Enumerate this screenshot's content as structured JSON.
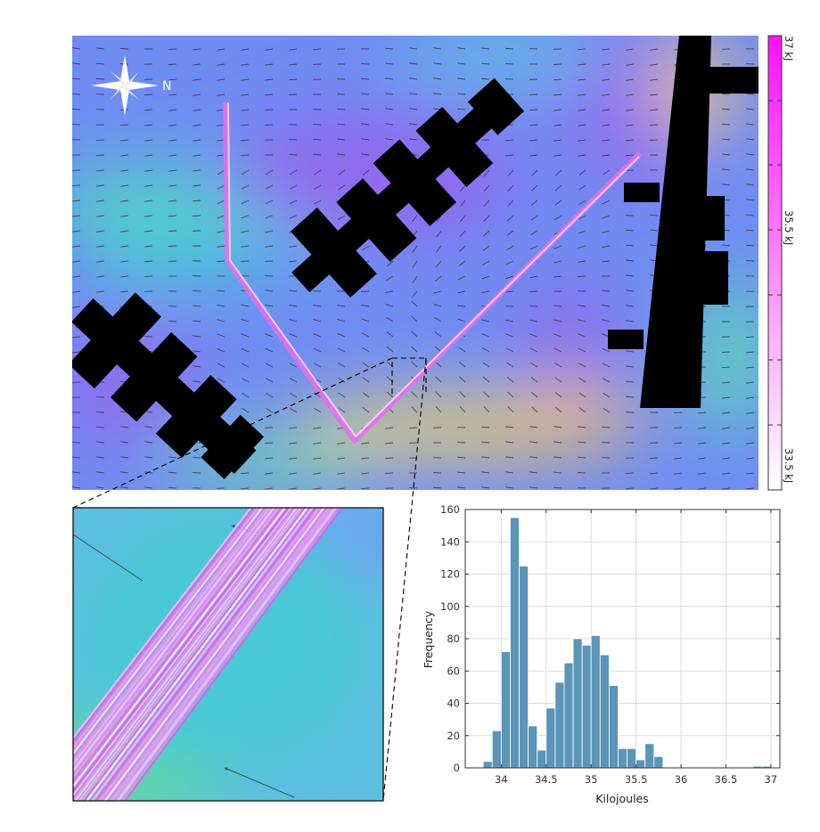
{
  "map": {
    "north_label": "N",
    "colorbar": {
      "labels": [
        "37 kJ",
        "35.5 kJ",
        "33.5 kJ"
      ],
      "colors": [
        "#ff00ff",
        "#ffffff"
      ]
    },
    "background_colors": [
      "#8a6bf0",
      "#6f8ff5",
      "#3fc8da",
      "#7fe0a8",
      "#f2c86a"
    ],
    "path_color": "#e070f0"
  },
  "chart_data": {
    "type": "bar",
    "xlabel": "Kilojoules",
    "ylabel": "Frequency",
    "xlim": [
      33.6,
      37.1
    ],
    "ylim": [
      0,
      160
    ],
    "xticks": [
      34,
      34.5,
      35,
      35.5,
      36,
      36.5,
      37
    ],
    "yticks": [
      0,
      20,
      40,
      60,
      80,
      100,
      120,
      140,
      160
    ],
    "grid": true,
    "bar_color": "#5b95b8",
    "bin_width": 0.1,
    "bins": [
      {
        "x": 33.8,
        "value": 4
      },
      {
        "x": 33.9,
        "value": 23
      },
      {
        "x": 34.0,
        "value": 72
      },
      {
        "x": 34.1,
        "value": 155
      },
      {
        "x": 34.2,
        "value": 125
      },
      {
        "x": 34.3,
        "value": 26
      },
      {
        "x": 34.4,
        "value": 11
      },
      {
        "x": 34.5,
        "value": 37
      },
      {
        "x": 34.6,
        "value": 53
      },
      {
        "x": 34.7,
        "value": 65
      },
      {
        "x": 34.8,
        "value": 80
      },
      {
        "x": 34.9,
        "value": 76
      },
      {
        "x": 35.0,
        "value": 82
      },
      {
        "x": 35.1,
        "value": 70
      },
      {
        "x": 35.2,
        "value": 51
      },
      {
        "x": 35.3,
        "value": 12
      },
      {
        "x": 35.4,
        "value": 12
      },
      {
        "x": 35.5,
        "value": 5
      },
      {
        "x": 35.6,
        "value": 15
      },
      {
        "x": 35.7,
        "value": 7
      },
      {
        "x": 36.8,
        "value": 1
      },
      {
        "x": 36.9,
        "value": 1
      }
    ]
  }
}
